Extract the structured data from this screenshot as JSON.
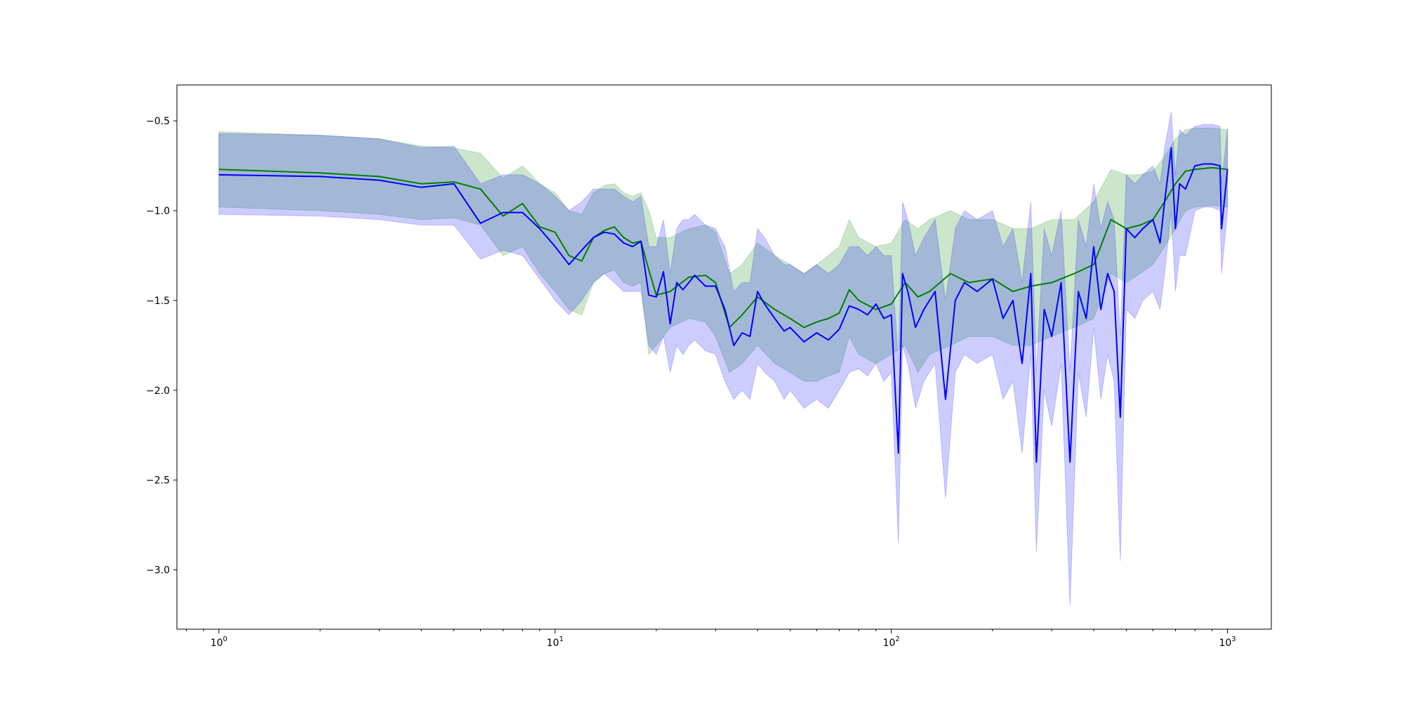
{
  "chart_data": {
    "type": "line",
    "title": "",
    "xlabel": "",
    "ylabel": "",
    "xscale": "log",
    "xlim": [
      0.75,
      1350
    ],
    "ylim": [
      -3.33,
      -0.3
    ],
    "grid": false,
    "legend": "none",
    "x_ticks": [
      {
        "value": 1,
        "base": "10",
        "exp": "0"
      },
      {
        "value": 10,
        "base": "10",
        "exp": "1"
      },
      {
        "value": 100,
        "base": "10",
        "exp": "2"
      },
      {
        "value": 1000,
        "base": "10",
        "exp": "3"
      }
    ],
    "y_ticks": [
      {
        "value": -0.5,
        "label": "−0.5"
      },
      {
        "value": -1.0,
        "label": "−1.0"
      },
      {
        "value": -1.5,
        "label": "−1.5"
      },
      {
        "value": -2.0,
        "label": "−2.0"
      },
      {
        "value": -2.5,
        "label": "−2.5"
      },
      {
        "value": -3.0,
        "label": "−3.0"
      }
    ],
    "series": [
      {
        "color": "#008000",
        "band_color": "#008000",
        "band_opacity": 0.2,
        "x": [
          1,
          2,
          3,
          4,
          5,
          6,
          7,
          8,
          9,
          10,
          11,
          12,
          13,
          14,
          15,
          16,
          17,
          18,
          19,
          20,
          22,
          25,
          28,
          30,
          33,
          36,
          40,
          45,
          50,
          55,
          60,
          65,
          70,
          75,
          80,
          90,
          100,
          110,
          120,
          130,
          150,
          170,
          200,
          230,
          260,
          300,
          350,
          400,
          450,
          500,
          550,
          600,
          650,
          700,
          750,
          800,
          900,
          1000
        ],
        "y": [
          -0.77,
          -0.79,
          -0.81,
          -0.85,
          -0.84,
          -0.88,
          -1.03,
          -0.96,
          -1.09,
          -1.12,
          -1.25,
          -1.28,
          -1.15,
          -1.11,
          -1.09,
          -1.15,
          -1.18,
          -1.17,
          -1.33,
          -1.47,
          -1.45,
          -1.37,
          -1.36,
          -1.4,
          -1.65,
          -1.58,
          -1.48,
          -1.55,
          -1.6,
          -1.65,
          -1.62,
          -1.6,
          -1.57,
          -1.44,
          -1.5,
          -1.55,
          -1.52,
          -1.4,
          -1.48,
          -1.45,
          -1.35,
          -1.4,
          -1.38,
          -1.45,
          -1.42,
          -1.4,
          -1.35,
          -1.3,
          -1.05,
          -1.1,
          -1.08,
          -1.05,
          -0.95,
          -0.85,
          -0.78,
          -0.77,
          -0.76,
          -0.77
        ],
        "lower": [
          -0.98,
          -1.0,
          -1.02,
          -1.05,
          -1.04,
          -1.08,
          -1.25,
          -1.2,
          -1.35,
          -1.45,
          -1.55,
          -1.58,
          -1.4,
          -1.35,
          -1.33,
          -1.4,
          -1.42,
          -1.4,
          -1.8,
          -1.75,
          -1.65,
          -1.6,
          -1.62,
          -1.7,
          -1.9,
          -1.85,
          -1.75,
          -1.85,
          -1.9,
          -1.95,
          -1.95,
          -1.92,
          -1.9,
          -1.7,
          -1.8,
          -1.85,
          -1.8,
          -1.75,
          -1.9,
          -1.8,
          -1.75,
          -1.7,
          -1.7,
          -1.75,
          -1.75,
          -1.7,
          -1.65,
          -1.6,
          -1.35,
          -1.4,
          -1.35,
          -1.3,
          -1.2,
          -1.1,
          -1.0,
          -0.98,
          -0.97,
          -0.98
        ],
        "upper": [
          -0.56,
          -0.58,
          -0.6,
          -0.64,
          -0.65,
          -0.68,
          -0.82,
          -0.75,
          -0.85,
          -0.9,
          -1.0,
          -1.02,
          -0.9,
          -0.86,
          -0.85,
          -0.9,
          -0.92,
          -0.9,
          -1.0,
          -1.15,
          -1.15,
          -1.1,
          -1.08,
          -1.12,
          -1.35,
          -1.3,
          -1.18,
          -1.25,
          -1.3,
          -1.35,
          -1.3,
          -1.25,
          -1.2,
          -1.05,
          -1.15,
          -1.2,
          -1.18,
          -1.05,
          -1.1,
          -1.05,
          -1.0,
          -1.05,
          -1.05,
          -1.1,
          -1.1,
          -1.05,
          -1.05,
          -0.95,
          -0.77,
          -0.8,
          -0.8,
          -0.78,
          -0.7,
          -0.6,
          -0.55,
          -0.54,
          -0.54,
          -0.55
        ]
      },
      {
        "color": "#0000ff",
        "band_color": "#0000ff",
        "band_opacity": 0.2,
        "x": [
          1,
          2,
          3,
          4,
          5,
          6,
          7,
          8,
          9,
          10,
          11,
          12,
          13,
          14,
          15,
          16,
          17,
          18,
          19,
          20,
          21,
          22,
          23,
          24,
          25,
          26,
          28,
          30,
          32,
          34,
          36,
          38,
          40,
          42,
          45,
          48,
          50,
          55,
          60,
          65,
          70,
          75,
          80,
          85,
          90,
          95,
          100,
          105,
          108,
          112,
          118,
          125,
          135,
          145,
          155,
          165,
          180,
          200,
          215,
          230,
          245,
          260,
          270,
          285,
          300,
          320,
          340,
          360,
          380,
          400,
          420,
          440,
          460,
          480,
          500,
          530,
          560,
          600,
          630,
          650,
          680,
          700,
          720,
          750,
          800,
          850,
          900,
          950,
          960,
          1000
        ],
        "y": [
          -0.8,
          -0.81,
          -0.83,
          -0.87,
          -0.85,
          -1.07,
          -1.01,
          -1.01,
          -1.1,
          -1.2,
          -1.3,
          -1.22,
          -1.15,
          -1.12,
          -1.13,
          -1.18,
          -1.2,
          -1.17,
          -1.47,
          -1.48,
          -1.34,
          -1.63,
          -1.4,
          -1.44,
          -1.4,
          -1.36,
          -1.42,
          -1.42,
          -1.55,
          -1.75,
          -1.68,
          -1.7,
          -1.45,
          -1.52,
          -1.6,
          -1.67,
          -1.65,
          -1.73,
          -1.68,
          -1.72,
          -1.66,
          -1.53,
          -1.55,
          -1.58,
          -1.52,
          -1.6,
          -1.58,
          -2.35,
          -1.35,
          -1.45,
          -1.65,
          -1.55,
          -1.45,
          -2.05,
          -1.5,
          -1.4,
          -1.45,
          -1.38,
          -1.6,
          -1.5,
          -1.85,
          -1.35,
          -2.4,
          -1.55,
          -1.7,
          -1.4,
          -2.4,
          -1.45,
          -1.6,
          -1.2,
          -1.55,
          -1.35,
          -1.45,
          -2.15,
          -1.1,
          -1.15,
          -1.1,
          -1.05,
          -1.18,
          -0.95,
          -0.65,
          -1.1,
          -0.85,
          -0.88,
          -0.75,
          -0.74,
          -0.74,
          -0.75,
          -1.1,
          -0.77
        ],
        "lower": [
          -1.02,
          -1.03,
          -1.05,
          -1.08,
          -1.08,
          -1.27,
          -1.22,
          -1.25,
          -1.38,
          -1.5,
          -1.58,
          -1.5,
          -1.4,
          -1.35,
          -1.4,
          -1.45,
          -1.45,
          -1.45,
          -1.75,
          -1.8,
          -1.7,
          -1.9,
          -1.75,
          -1.8,
          -1.75,
          -1.72,
          -1.78,
          -1.8,
          -1.95,
          -2.05,
          -2.0,
          -2.05,
          -1.85,
          -1.9,
          -1.95,
          -2.05,
          -2.0,
          -2.1,
          -2.05,
          -2.1,
          -2.0,
          -1.9,
          -1.88,
          -1.92,
          -1.85,
          -1.95,
          -1.9,
          -2.85,
          -1.75,
          -1.85,
          -2.1,
          -1.95,
          -1.85,
          -2.6,
          -1.9,
          -1.8,
          -1.85,
          -1.8,
          -2.05,
          -1.95,
          -2.35,
          -1.8,
          -2.9,
          -2.0,
          -2.2,
          -1.85,
          -3.2,
          -1.9,
          -2.15,
          -1.65,
          -2.05,
          -1.8,
          -1.95,
          -2.95,
          -1.55,
          -1.6,
          -1.5,
          -1.45,
          -1.55,
          -1.35,
          -1.0,
          -1.45,
          -1.25,
          -1.25,
          -1.0,
          -0.98,
          -0.98,
          -1.0,
          -1.35,
          -1.0
        ],
        "upper": [
          -0.57,
          -0.58,
          -0.6,
          -0.65,
          -0.64,
          -0.85,
          -0.8,
          -0.8,
          -0.85,
          -0.92,
          -1.0,
          -0.95,
          -0.88,
          -0.88,
          -0.88,
          -0.92,
          -0.95,
          -0.92,
          -1.2,
          -1.2,
          -1.05,
          -1.35,
          -1.1,
          -1.05,
          -1.05,
          -1.02,
          -1.08,
          -1.1,
          -1.2,
          -1.45,
          -1.4,
          -1.4,
          -1.1,
          -1.15,
          -1.25,
          -1.3,
          -1.3,
          -1.35,
          -1.3,
          -1.35,
          -1.3,
          -1.2,
          -1.2,
          -1.25,
          -1.2,
          -1.25,
          -1.25,
          -1.85,
          -0.95,
          -1.05,
          -1.25,
          -1.15,
          -1.05,
          -1.5,
          -1.1,
          -1.0,
          -1.05,
          -1.0,
          -1.2,
          -1.1,
          -1.4,
          -0.95,
          -1.9,
          -1.1,
          -1.25,
          -1.0,
          -1.9,
          -1.05,
          -1.2,
          -0.85,
          -1.1,
          -0.95,
          -1.05,
          -1.7,
          -0.8,
          -0.85,
          -0.8,
          -0.75,
          -0.85,
          -0.65,
          -0.45,
          -0.8,
          -0.55,
          -0.58,
          -0.53,
          -0.52,
          -0.52,
          -0.53,
          -0.85,
          -0.54
        ]
      }
    ]
  }
}
